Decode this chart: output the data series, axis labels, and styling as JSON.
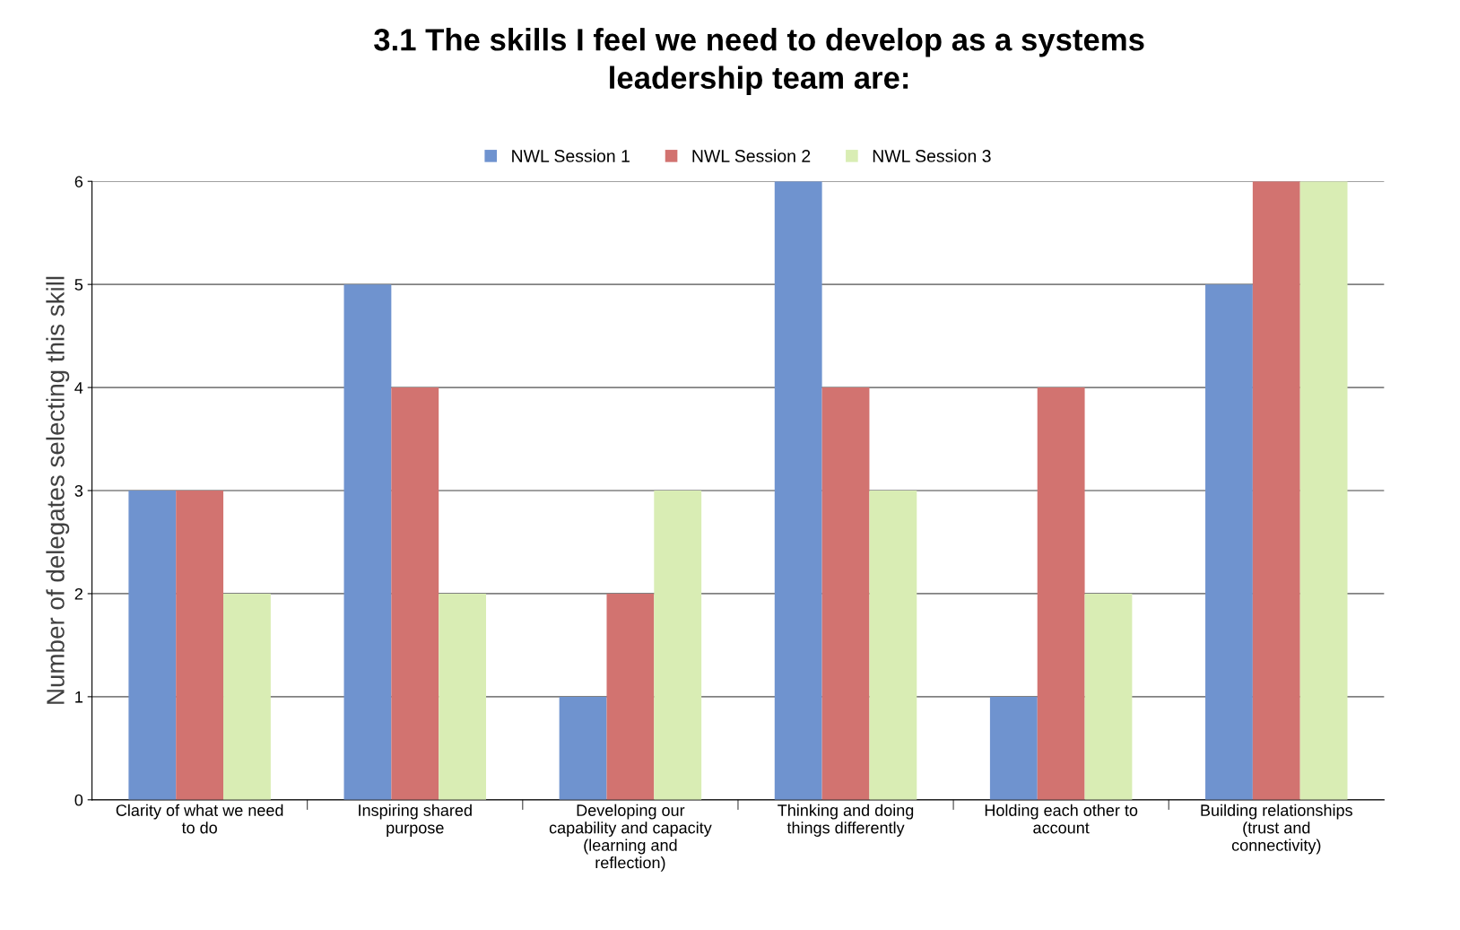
{
  "chart_data": {
    "type": "bar",
    "title": "3.1 The skills I feel we need to develop as a systems leadership team are:",
    "ylabel": "Number of delegates selecting this skill",
    "categories": [
      "Clarity of what we need to do",
      "Inspiring shared purpose",
      "Developing our capability and capacity (learning and reflection)",
      "Thinking and doing things differently",
      "Holding each other to account",
      "Building relationships (trust and connectivity)"
    ],
    "series": [
      {
        "name": "NWL Session 1",
        "color": "#6f93cf",
        "values": [
          3,
          5,
          1,
          6,
          1,
          5
        ]
      },
      {
        "name": "NWL Session 2",
        "color": "#d27370",
        "values": [
          3,
          4,
          2,
          4,
          4,
          6
        ]
      },
      {
        "name": "NWL Session 3",
        "color": "#d9edb4",
        "values": [
          2,
          2,
          3,
          3,
          2,
          6
        ]
      }
    ],
    "ylim": [
      0,
      6
    ],
    "yticks": [
      0,
      1,
      2,
      3,
      4,
      5,
      6
    ],
    "grid": "y",
    "legend": "top"
  }
}
